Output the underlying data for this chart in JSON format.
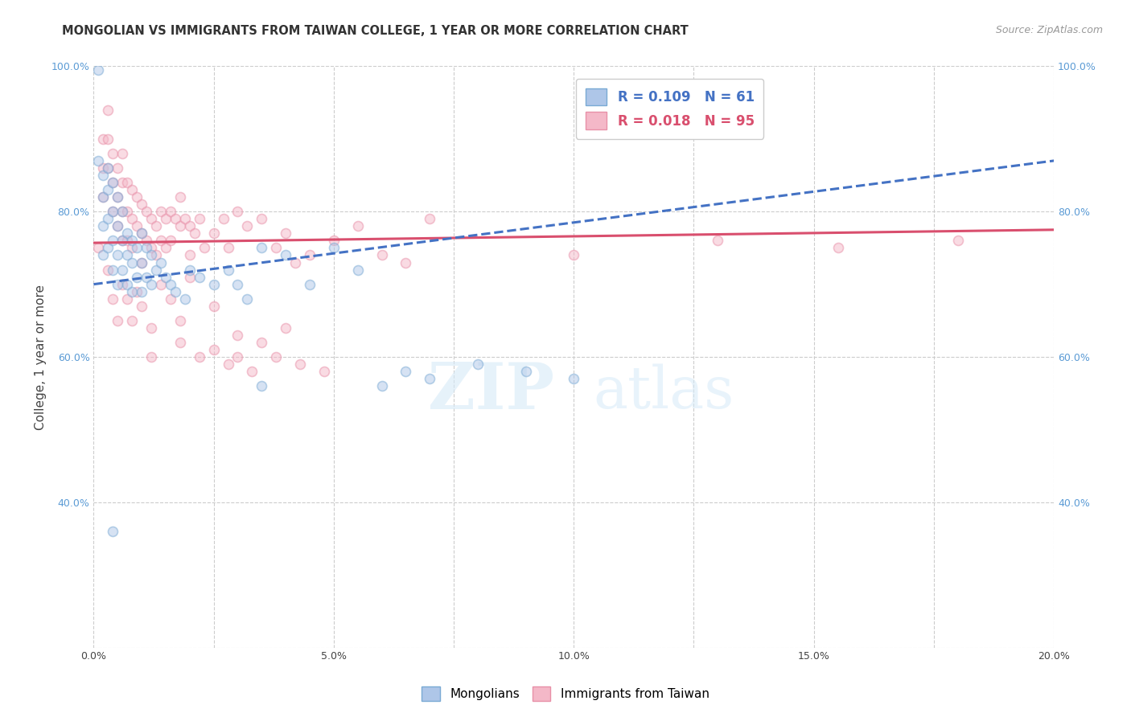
{
  "title": "MONGOLIAN VS IMMIGRANTS FROM TAIWAN COLLEGE, 1 YEAR OR MORE CORRELATION CHART",
  "source": "Source: ZipAtlas.com",
  "xlabel": "",
  "ylabel": "College, 1 year or more",
  "xlim": [
    0.0,
    0.2
  ],
  "ylim": [
    0.2,
    1.0
  ],
  "xticks": [
    0.0,
    0.025,
    0.05,
    0.075,
    0.1,
    0.125,
    0.15,
    0.175,
    0.2
  ],
  "xticklabels": [
    "0.0%",
    "",
    "5.0%",
    "",
    "10.0%",
    "",
    "15.0%",
    "",
    "20.0%"
  ],
  "yticks_left": [
    0.2,
    0.4,
    0.6,
    0.8,
    1.0
  ],
  "yticklabels_left": [
    "",
    "40.0%",
    "60.0%",
    "80.0%",
    "100.0%"
  ],
  "yticks_right": [
    0.4,
    0.6,
    0.8,
    1.0
  ],
  "yticklabels_right": [
    "40.0%",
    "60.0%",
    "80.0%",
    "100.0%"
  ],
  "legend_r_blue": "R = 0.109",
  "legend_n_blue": "N = 61",
  "legend_r_pink": "R = 0.018",
  "legend_n_pink": "N = 95",
  "legend_label_blue": "Mongolians",
  "legend_label_pink": "Immigrants from Taiwan",
  "blue_color": "#aec6e8",
  "pink_color": "#f4b8c8",
  "blue_edge": "#7aaad4",
  "pink_edge": "#e890a8",
  "trend_blue_color": "#4472c4",
  "trend_pink_color": "#d94f6e",
  "blue_scatter_x": [
    0.001,
    0.001,
    0.002,
    0.002,
    0.002,
    0.002,
    0.003,
    0.003,
    0.003,
    0.003,
    0.004,
    0.004,
    0.004,
    0.004,
    0.005,
    0.005,
    0.005,
    0.005,
    0.006,
    0.006,
    0.006,
    0.007,
    0.007,
    0.007,
    0.008,
    0.008,
    0.008,
    0.009,
    0.009,
    0.01,
    0.01,
    0.01,
    0.011,
    0.011,
    0.012,
    0.012,
    0.013,
    0.014,
    0.015,
    0.016,
    0.017,
    0.019,
    0.02,
    0.022,
    0.025,
    0.028,
    0.03,
    0.032,
    0.035,
    0.04,
    0.045,
    0.05,
    0.055,
    0.06,
    0.065,
    0.07,
    0.08,
    0.09,
    0.1,
    0.004,
    0.035
  ],
  "blue_scatter_y": [
    0.995,
    0.87,
    0.85,
    0.82,
    0.78,
    0.74,
    0.86,
    0.83,
    0.79,
    0.75,
    0.84,
    0.8,
    0.76,
    0.72,
    0.82,
    0.78,
    0.74,
    0.7,
    0.8,
    0.76,
    0.72,
    0.77,
    0.74,
    0.7,
    0.76,
    0.73,
    0.69,
    0.75,
    0.71,
    0.77,
    0.73,
    0.69,
    0.75,
    0.71,
    0.74,
    0.7,
    0.72,
    0.73,
    0.71,
    0.7,
    0.69,
    0.68,
    0.72,
    0.71,
    0.7,
    0.72,
    0.7,
    0.68,
    0.75,
    0.74,
    0.7,
    0.75,
    0.72,
    0.56,
    0.58,
    0.57,
    0.59,
    0.58,
    0.57,
    0.36,
    0.56
  ],
  "pink_scatter_x": [
    0.001,
    0.002,
    0.002,
    0.002,
    0.003,
    0.003,
    0.003,
    0.004,
    0.004,
    0.004,
    0.005,
    0.005,
    0.005,
    0.006,
    0.006,
    0.006,
    0.006,
    0.007,
    0.007,
    0.007,
    0.008,
    0.008,
    0.008,
    0.009,
    0.009,
    0.01,
    0.01,
    0.01,
    0.011,
    0.011,
    0.012,
    0.012,
    0.013,
    0.013,
    0.014,
    0.014,
    0.015,
    0.015,
    0.016,
    0.016,
    0.017,
    0.018,
    0.018,
    0.019,
    0.02,
    0.02,
    0.021,
    0.022,
    0.023,
    0.025,
    0.027,
    0.028,
    0.03,
    0.032,
    0.035,
    0.038,
    0.04,
    0.042,
    0.045,
    0.05,
    0.055,
    0.06,
    0.065,
    0.07,
    0.1,
    0.13,
    0.155,
    0.18,
    0.003,
    0.004,
    0.005,
    0.006,
    0.007,
    0.008,
    0.009,
    0.01,
    0.012,
    0.014,
    0.016,
    0.018,
    0.02,
    0.025,
    0.03,
    0.035,
    0.04,
    0.012,
    0.018,
    0.022,
    0.025,
    0.028,
    0.03,
    0.033,
    0.038,
    0.043,
    0.048
  ],
  "pink_scatter_y": [
    0.75,
    0.9,
    0.86,
    0.82,
    0.94,
    0.9,
    0.86,
    0.88,
    0.84,
    0.8,
    0.86,
    0.82,
    0.78,
    0.84,
    0.8,
    0.76,
    0.88,
    0.84,
    0.8,
    0.76,
    0.83,
    0.79,
    0.75,
    0.82,
    0.78,
    0.81,
    0.77,
    0.73,
    0.8,
    0.76,
    0.79,
    0.75,
    0.78,
    0.74,
    0.8,
    0.76,
    0.79,
    0.75,
    0.8,
    0.76,
    0.79,
    0.82,
    0.78,
    0.79,
    0.78,
    0.74,
    0.77,
    0.79,
    0.75,
    0.77,
    0.79,
    0.75,
    0.8,
    0.78,
    0.79,
    0.75,
    0.77,
    0.73,
    0.74,
    0.76,
    0.78,
    0.74,
    0.73,
    0.79,
    0.74,
    0.76,
    0.75,
    0.76,
    0.72,
    0.68,
    0.65,
    0.7,
    0.68,
    0.65,
    0.69,
    0.67,
    0.64,
    0.7,
    0.68,
    0.65,
    0.71,
    0.67,
    0.63,
    0.62,
    0.64,
    0.6,
    0.62,
    0.6,
    0.61,
    0.59,
    0.6,
    0.58,
    0.6,
    0.59,
    0.58
  ],
  "blue_trend_x": [
    0.0,
    0.2
  ],
  "blue_trend_y": [
    0.7,
    0.87
  ],
  "pink_trend_x": [
    0.0,
    0.2
  ],
  "pink_trend_y": [
    0.757,
    0.775
  ],
  "marker_size": 75,
  "alpha": 0.5,
  "watermark_text": "ZIPatlas",
  "background_color": "#ffffff",
  "grid_color": "#cccccc"
}
